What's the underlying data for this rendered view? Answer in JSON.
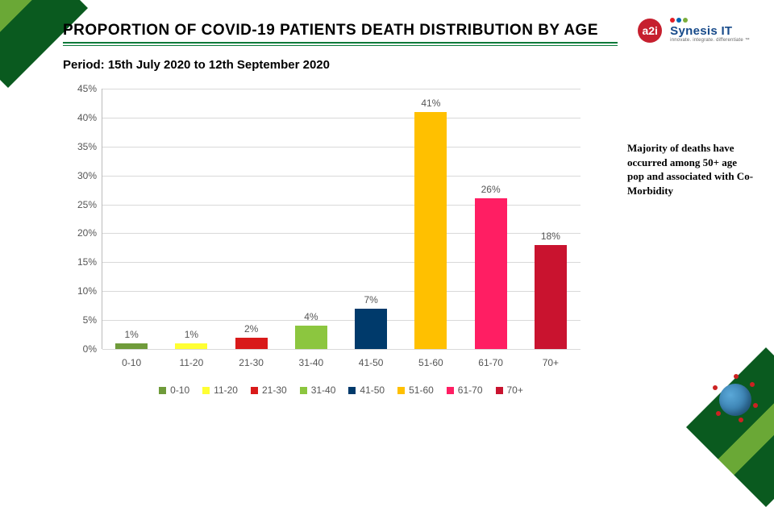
{
  "header": {
    "title": "PROPORTION OF COVID-19 PATIENTS DEATH DISTRIBUTION BY AGE",
    "title_fontsize": 19,
    "underline_color": "#0a7a3a",
    "logo_badge_text": "a2i",
    "logo_badge_bg": "#c61f2e",
    "synesis_brand": "Synesis IT",
    "synesis_tag": "innovate. integrate. differentiate ™",
    "synesis_dot_colors": [
      "#e41d25",
      "#0066b3",
      "#7aad3b"
    ]
  },
  "period": {
    "label": "Period: 15th July 2020 to 12th September 2020",
    "fontsize": 15
  },
  "callout": {
    "text": "Majority of deaths have occurred among 50+ age pop and associated with Co-Morbidity"
  },
  "chart": {
    "type": "bar",
    "categories": [
      "0-10",
      "11-20",
      "21-30",
      "31-40",
      "41-50",
      "51-60",
      "61-70",
      "70+"
    ],
    "values": [
      1,
      1,
      2,
      4,
      7,
      41,
      26,
      18
    ],
    "value_labels": [
      "1%",
      "1%",
      "2%",
      "4%",
      "7%",
      "41%",
      "26%",
      "18%"
    ],
    "bar_colors": [
      "#6f9b3a",
      "#ffff33",
      "#d91a1a",
      "#8cc63f",
      "#003a6b",
      "#ffc000",
      "#ff1e63",
      "#c9132f"
    ],
    "ylim": [
      0,
      45
    ],
    "ytick_step": 5,
    "ytick_format": "{v}%",
    "background_color": "#ffffff",
    "grid_color": "#d9d9d9",
    "axis_color": "#bbbbbb",
    "label_fontsize": 12,
    "label_color": "#555555",
    "bar_width": 0.54,
    "legend_marker_size": 9
  },
  "decor": {
    "corner_gradient": [
      "#0a5a1f",
      "#6aa836",
      "#0a5a1f"
    ],
    "virus_body_colors": [
      "#5aa8d8",
      "#1f5f8f"
    ],
    "virus_spike_color": "#c22"
  }
}
